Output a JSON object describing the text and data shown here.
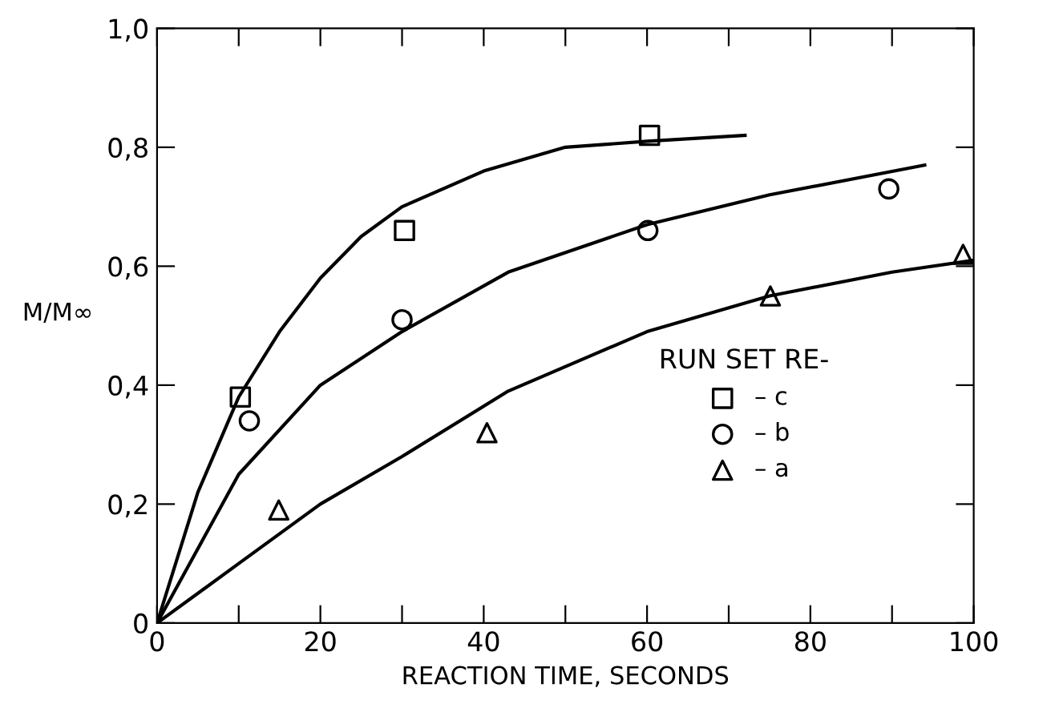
{
  "chart_data": {
    "type": "scatter",
    "xlabel": "REACTION TIME, SECONDS",
    "ylabel": "M/M∞",
    "legend_title": "RUN SET RE-",
    "legend": "right",
    "xlim": [
      0,
      100
    ],
    "ylim": [
      0,
      1.0
    ],
    "xticks": [
      0,
      {
        "value": 10,
        "label": null
      },
      20,
      {
        "value": 30,
        "label": null
      },
      40,
      {
        "value": 50,
        "label": null
      },
      60,
      {
        "value": 70,
        "label": null
      },
      80,
      {
        "value": 90,
        "label": null
      },
      100
    ],
    "yticks": [
      0,
      {
        "value": 0.2,
        "label": "0,2"
      },
      {
        "value": 0.4,
        "label": "0,4"
      },
      {
        "value": 0.6,
        "label": "0,6"
      },
      {
        "value": 0.8,
        "label": "0,8"
      },
      {
        "value": 1.0,
        "label": "1,0"
      }
    ],
    "grid": false,
    "series": [
      {
        "name": "– c",
        "marker": "square",
        "color": "#000000",
        "x": [
          10.2,
          30.3,
          60.3
        ],
        "values": [
          0.38,
          0.66,
          0.82
        ]
      },
      {
        "name": "– b",
        "marker": "circle",
        "color": "#000000",
        "x": [
          11.3,
          30,
          60.1,
          89.6
        ],
        "values": [
          0.34,
          0.51,
          0.66,
          0.73
        ]
      },
      {
        "name": "– a",
        "marker": "triangle",
        "color": "#000000",
        "x": [
          14.9,
          40.4,
          75.1,
          98.7
        ],
        "values": [
          0.19,
          0.32,
          0.55,
          0.62
        ]
      },
      {
        "type": "line",
        "marker": "none",
        "line_style": "solid",
        "color": "#000000",
        "x": [
          0,
          5,
          10,
          15,
          20,
          25,
          30,
          40,
          50,
          60,
          72
        ],
        "values": [
          0,
          0.22,
          0.38,
          0.49,
          0.58,
          0.65,
          0.7,
          0.76,
          0.8,
          0.81,
          0.82
        ]
      },
      {
        "type": "line",
        "marker": "none",
        "line_style": "solid",
        "color": "#000000",
        "x": [
          0,
          10,
          20,
          30,
          43,
          60,
          75,
          94
        ],
        "values": [
          0,
          0.25,
          0.4,
          0.49,
          0.59,
          0.67,
          0.72,
          0.77
        ]
      },
      {
        "type": "line",
        "marker": "none",
        "line_style": "solid",
        "color": "#000000",
        "x": [
          0,
          10,
          20,
          30,
          43,
          60,
          75,
          90,
          100
        ],
        "values": [
          0,
          0.1,
          0.2,
          0.28,
          0.39,
          0.49,
          0.55,
          0.59,
          0.61
        ]
      }
    ]
  }
}
